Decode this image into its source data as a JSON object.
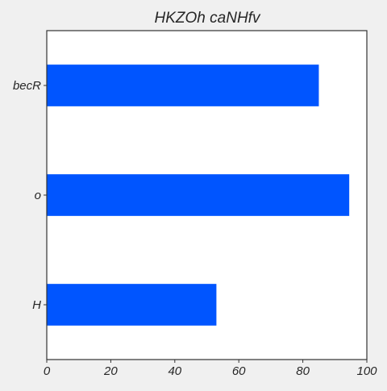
{
  "chart_data": {
    "type": "bar",
    "orientation": "horizontal",
    "title": "HKZOh caNHfv",
    "xlabel": "",
    "ylabel": "",
    "categories": [
      "becR",
      "o",
      "H"
    ],
    "values": [
      85,
      94.5,
      53
    ],
    "xlim": [
      0,
      100
    ],
    "xticks": [
      0,
      20,
      40,
      60,
      80,
      100
    ],
    "grid": false,
    "legend": "none",
    "colors": {
      "bar": "#0055ff",
      "plot_background": "#ffffff",
      "figure_background": "#f0f0f0",
      "axis": "#333333",
      "text": "#262626"
    }
  }
}
